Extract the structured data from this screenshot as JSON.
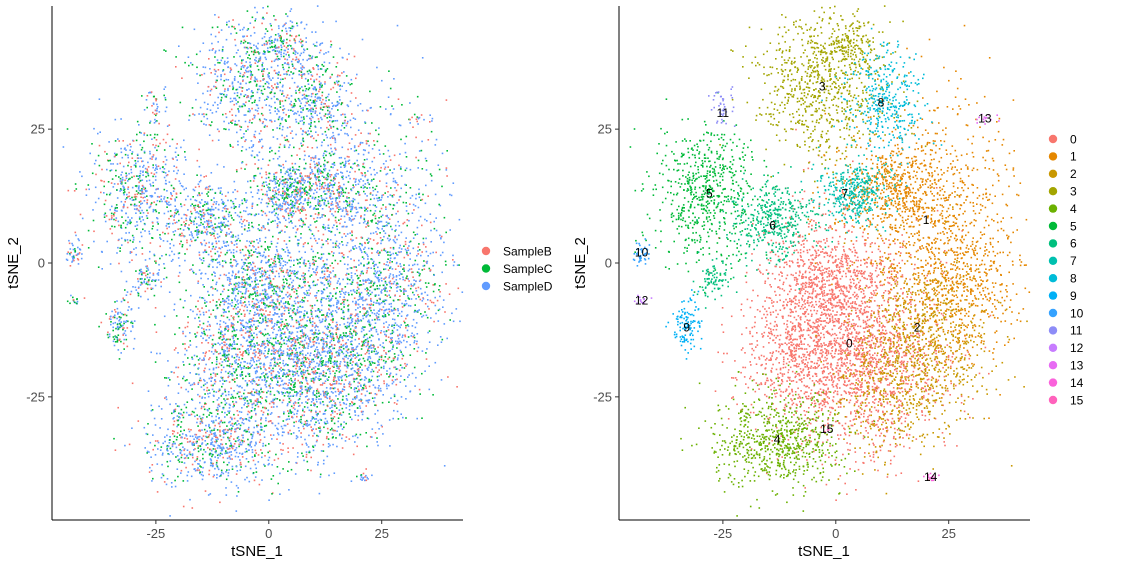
{
  "chart_data": [
    {
      "type": "scatter",
      "xlabel": "tSNE_1",
      "ylabel": "tSNE_2",
      "xlim": [
        -48,
        43
      ],
      "ylim": [
        -48,
        48
      ],
      "xticks": [
        -25,
        0,
        25
      ],
      "yticks": [
        -25,
        0,
        25
      ],
      "legend_position": "right",
      "series": [
        {
          "name": "SampleB",
          "color": "#F8766D"
        },
        {
          "name": "SampleC",
          "color": "#00BA38"
        },
        {
          "name": "SampleD",
          "color": "#619CFF"
        }
      ]
    },
    {
      "type": "scatter",
      "xlabel": "tSNE_1",
      "ylabel": "tSNE_2",
      "xlim": [
        -48,
        43
      ],
      "ylim": [
        -48,
        48
      ],
      "xticks": [
        -25,
        0,
        25
      ],
      "yticks": [
        -25,
        0,
        25
      ],
      "legend_position": "right",
      "clusters": [
        {
          "name": "0",
          "color": "#F8766D",
          "center": [
            3,
            -15
          ]
        },
        {
          "name": "1",
          "color": "#E58700",
          "center": [
            20,
            8
          ]
        },
        {
          "name": "2",
          "color": "#C99800",
          "center": [
            18,
            -12
          ]
        },
        {
          "name": "3",
          "color": "#A3A500",
          "center": [
            -3,
            33
          ]
        },
        {
          "name": "4",
          "color": "#6BB100",
          "center": [
            -13,
            -33
          ]
        },
        {
          "name": "5",
          "color": "#00BA38",
          "center": [
            -28,
            13
          ]
        },
        {
          "name": "6",
          "color": "#00BF7D",
          "center": [
            -14,
            7
          ]
        },
        {
          "name": "7",
          "color": "#00C0AF",
          "center": [
            2,
            13
          ]
        },
        {
          "name": "8",
          "color": "#00BCD8",
          "center": [
            10,
            30
          ]
        },
        {
          "name": "9",
          "color": "#00B0F6",
          "center": [
            -33,
            -12
          ]
        },
        {
          "name": "10",
          "color": "#35A2FF",
          "center": [
            -43,
            2
          ]
        },
        {
          "name": "11",
          "color": "#8D8CF7",
          "center": [
            -25,
            28
          ]
        },
        {
          "name": "12",
          "color": "#C77CFF",
          "center": [
            -43,
            -7
          ]
        },
        {
          "name": "13",
          "color": "#E76BF3",
          "center": [
            33,
            27
          ]
        },
        {
          "name": "14",
          "color": "#FA62DB",
          "center": [
            21,
            -40
          ]
        },
        {
          "name": "15",
          "color": "#FF62BC",
          "center": [
            -2,
            -31
          ]
        }
      ]
    }
  ]
}
